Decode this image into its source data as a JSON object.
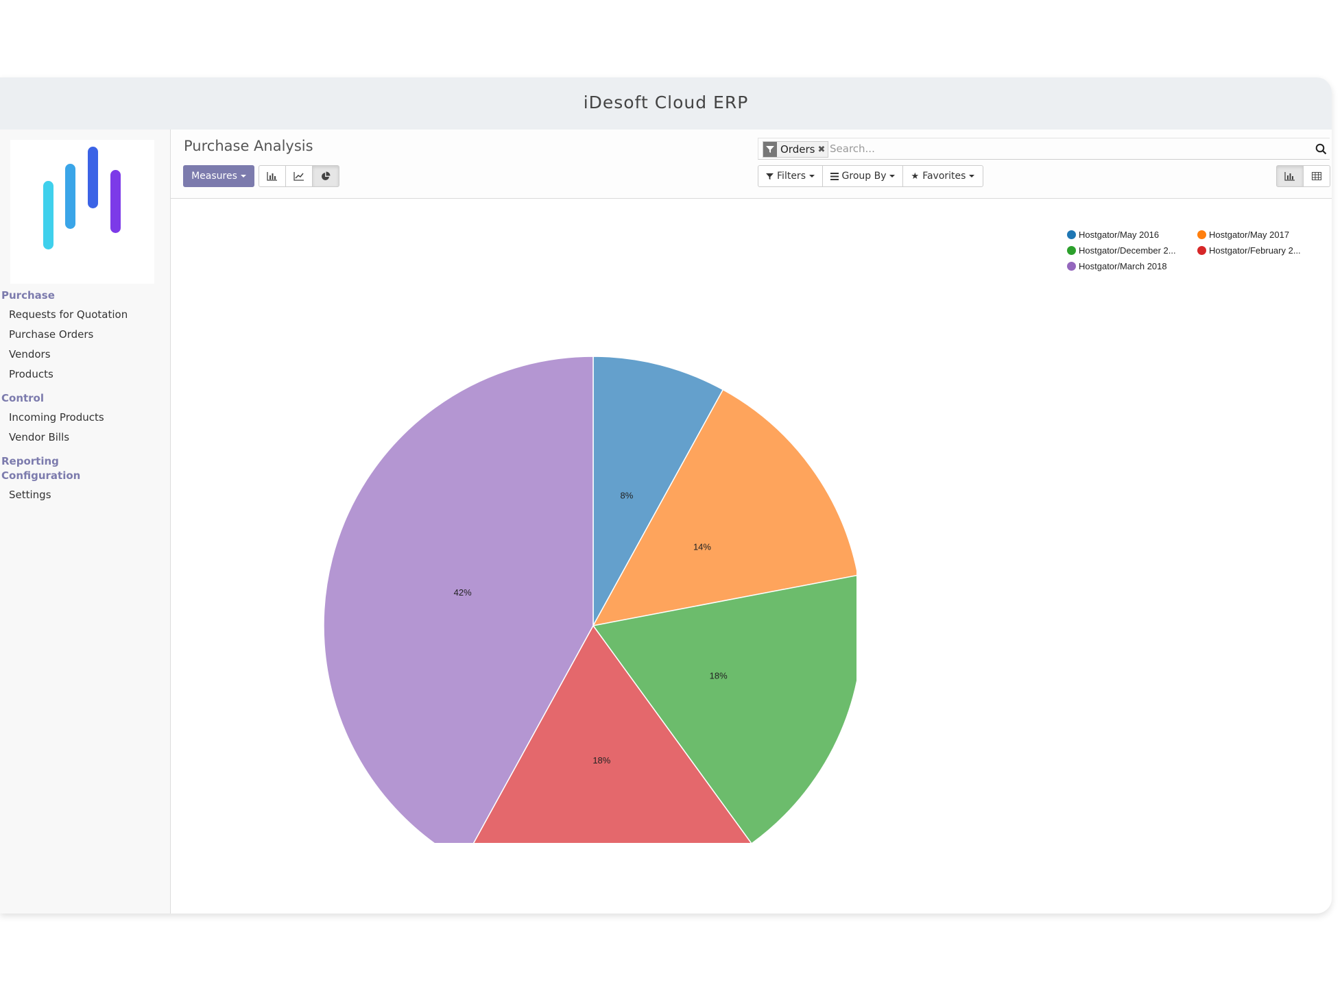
{
  "window": {
    "title": "iDesoft Cloud ERP"
  },
  "sidebar": {
    "sections": [
      {
        "label": "Purchase",
        "items": [
          "Requests for Quotation",
          "Purchase Orders",
          "Vendors",
          "Products"
        ]
      },
      {
        "label": "Control",
        "items": [
          "Incoming Products",
          "Vendor Bills"
        ]
      },
      {
        "label": "Reporting",
        "items": []
      },
      {
        "label": "Configuration",
        "items": [
          "Settings"
        ]
      }
    ]
  },
  "control_panel": {
    "title": "Purchase Analysis",
    "measures_label": "Measures",
    "chart_modes": [
      {
        "name": "bar",
        "icon": "bar-chart-icon",
        "active": false
      },
      {
        "name": "line",
        "icon": "line-chart-icon",
        "active": false
      },
      {
        "name": "pie",
        "icon": "pie-chart-icon",
        "active": true
      }
    ],
    "search": {
      "facet_label": "Orders",
      "placeholder": "Search..."
    },
    "filters_label": "Filters",
    "groupby_label": "Group By",
    "favorites_label": "Favorites",
    "views": [
      {
        "name": "graph",
        "icon": "graph-view-icon",
        "active": true
      },
      {
        "name": "pivot",
        "icon": "pivot-view-icon",
        "active": false
      }
    ]
  },
  "chart_data": {
    "type": "pie",
    "series": [
      {
        "name": "Hostgator/May 2016",
        "value": 8,
        "label": "8%",
        "color": "#1f77b4"
      },
      {
        "name": "Hostgator/May 2017",
        "value": 14,
        "label": "14%",
        "color": "#ff7f0e"
      },
      {
        "name": "Hostgator/December 2...",
        "value": 18,
        "label": "18%",
        "color": "#2ca02c"
      },
      {
        "name": "Hostgator/February 2...",
        "value": 18,
        "label": "18%",
        "color": "#d62728"
      },
      {
        "name": "Hostgator/March 2018",
        "value": 42,
        "label": "42%",
        "color": "#9467bd"
      }
    ],
    "legend_position": "top-right"
  },
  "colors": {
    "accent": "#7c7bad",
    "slice_fills": [
      "#64a0cc",
      "#fea45c",
      "#6cbc6c",
      "#e4686c",
      "#b496d2"
    ]
  }
}
